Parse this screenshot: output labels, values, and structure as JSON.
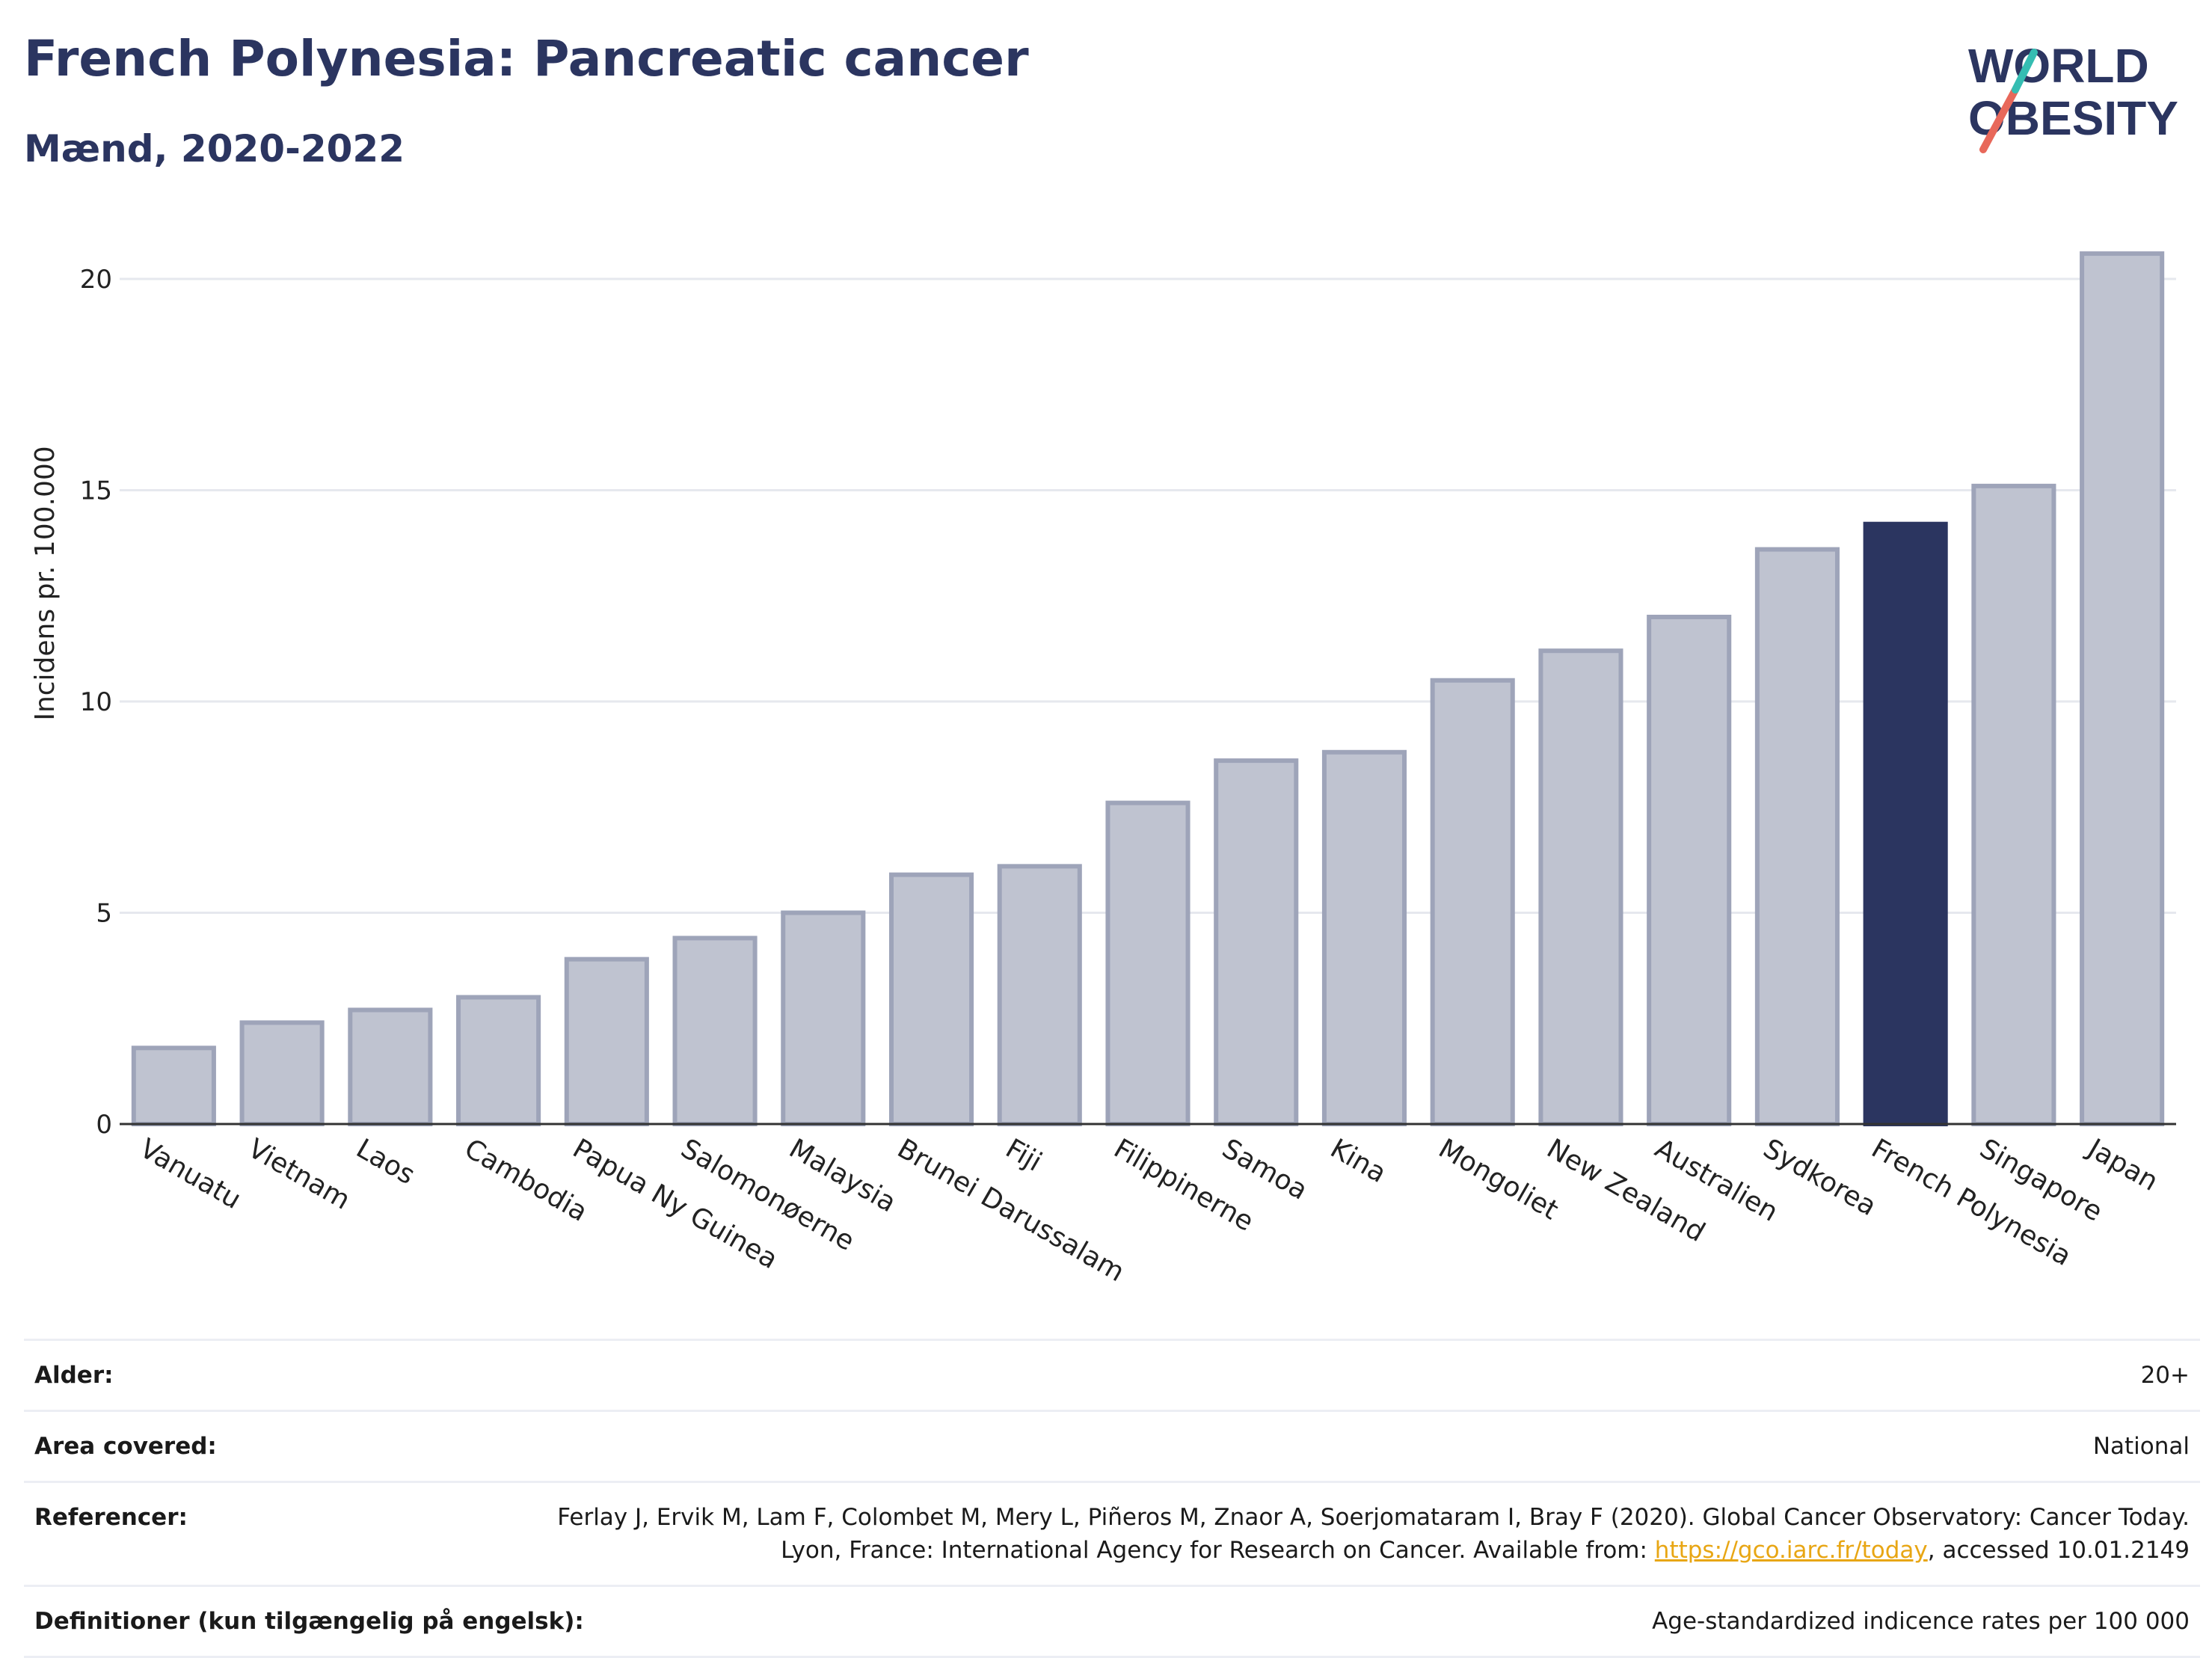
{
  "header": {
    "title": "French Polynesia: Pancreatic cancer",
    "subtitle": "Mænd, 2020-2022"
  },
  "logo": {
    "line1": "WORLD",
    "line2": "OBESITY"
  },
  "colors": {
    "bar": "#bfc3d0",
    "bar_border": "#9ea4b9",
    "highlight": "#2b3560",
    "grid": "#e6e8ee",
    "axis": "#333333"
  },
  "chart_data": {
    "type": "bar",
    "ylabel": "Incidens pr. 100.000",
    "ylim": [
      0,
      21
    ],
    "yticks": [
      0,
      5,
      10,
      15,
      20
    ],
    "grid": true,
    "highlight": "French Polynesia",
    "categories": [
      "Vanuatu",
      "Vietnam",
      "Laos",
      "Cambodia",
      "Papua Ny Guinea",
      "Salomonøerne",
      "Malaysia",
      "Brunei Darussalam",
      "Fiji",
      "Filippinerne",
      "Samoa",
      "Kina",
      "Mongoliet",
      "New Zealand",
      "Australien",
      "Sydkorea",
      "French Polynesia",
      "Singapore",
      "Japan"
    ],
    "values": [
      1.8,
      2.4,
      2.7,
      3.0,
      3.9,
      4.4,
      5.0,
      5.9,
      6.1,
      7.6,
      8.6,
      8.8,
      10.5,
      11.2,
      12.0,
      13.6,
      14.2,
      15.1,
      20.6
    ]
  },
  "info": {
    "age_label": "Alder:",
    "age_value": "20+",
    "area_label": "Area covered:",
    "area_value": "National",
    "ref_label": "Referencer:",
    "ref_text_1": "Ferlay J, Ervik M, Lam F, Colombet M, Mery L, Piñeros M, Znaor A, Soerjomataram I, Bray F (2020). Global Cancer Observatory: Cancer Today. Lyon, France: International Agency for Research on Cancer. Available from: ",
    "ref_link": "https://gco.iarc.fr/today",
    "ref_text_2": ", accessed 10.01.2149",
    "def_label": "Definitioner (kun tilgængelig på engelsk):",
    "def_value": "Age-standardized indicence rates per 100 000"
  }
}
